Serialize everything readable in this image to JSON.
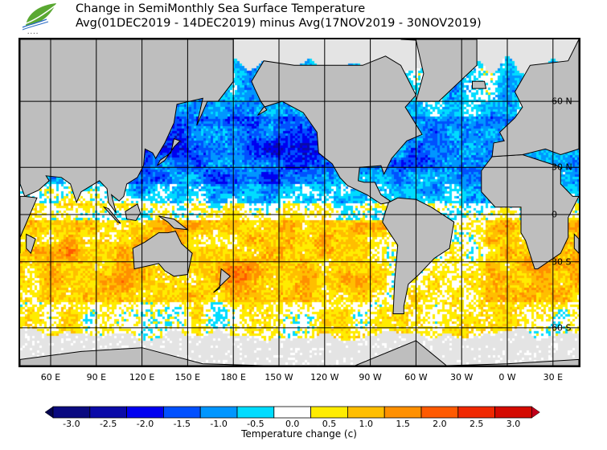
{
  "header": {
    "title": "Change in SemiMonthly Sea Surface Temperature",
    "subtitle": "Avg(01DEC2019 - 14DEC2019) minus Avg(17NOV2019 - 30NOV2019)",
    "logo_icon": "leaf-wave-logo-icon"
  },
  "map": {
    "longitude_labels": [
      "60 E",
      "90 E",
      "120 E",
      "150 E",
      "180 E",
      "150 W",
      "120 W",
      "90 W",
      "60 W",
      "30 W",
      "0 W",
      "30 E"
    ],
    "longitude_values": [
      60,
      90,
      120,
      150,
      180,
      210,
      240,
      270,
      300,
      330,
      360,
      390
    ],
    "latitude_labels": [
      "60 N",
      "30 N",
      "0",
      "30 S",
      "60 S"
    ],
    "latitude_values": [
      60,
      30,
      0,
      -30,
      -60
    ],
    "land_color": "#bebebe",
    "missing_color": "#e4e4e4"
  },
  "colorbar": {
    "title": "Temperature change  (c)",
    "labels": [
      "-3.0",
      "-2.5",
      "-2.0",
      "-1.5",
      "-1.0",
      "-0.5",
      "0.0",
      "0.5",
      "1.0",
      "1.5",
      "2.0",
      "2.5",
      "3.0"
    ],
    "colors": [
      "#0a0a80",
      "#0a0aa8",
      "#0000f0",
      "#0050ff",
      "#0096ff",
      "#00dcff",
      "#ffffff",
      "#ffec00",
      "#ffbe00",
      "#ff9000",
      "#ff5a00",
      "#f02800",
      "#d40a00"
    ]
  }
}
